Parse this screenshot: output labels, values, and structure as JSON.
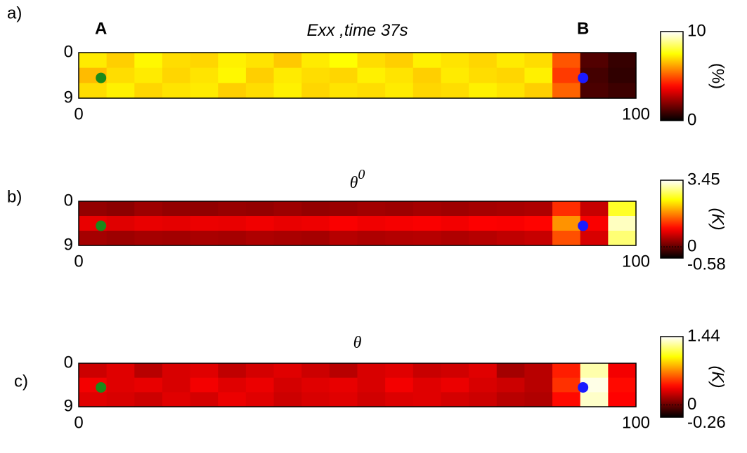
{
  "chart_data": [
    {
      "type": "heatmap",
      "panel_label": "a)",
      "title": "Exx ,time 37s",
      "title_style": "sans-italic",
      "xlim": [
        0,
        100
      ],
      "xticks": [
        0,
        100
      ],
      "ylim": [
        0,
        9
      ],
      "yticks": [
        0,
        9
      ],
      "colormap": "hot",
      "z": [
        [
          7.2,
          6.8,
          7.4,
          7.0,
          6.9,
          7.3,
          7.1,
          6.7,
          7.2,
          7.5,
          7.0,
          6.8,
          7.3,
          7.1,
          6.9,
          7.2,
          7.0,
          5.0,
          1.2,
          0.8
        ],
        [
          6.5,
          7.0,
          7.2,
          6.9,
          7.1,
          7.4,
          6.8,
          7.2,
          7.0,
          6.9,
          7.3,
          7.1,
          6.8,
          7.2,
          7.0,
          6.9,
          7.3,
          4.6,
          1.0,
          0.7
        ],
        [
          7.0,
          7.3,
          6.9,
          7.1,
          7.2,
          6.8,
          7.0,
          7.3,
          6.9,
          7.1,
          7.0,
          7.2,
          6.9,
          7.0,
          7.3,
          7.1,
          6.8,
          5.2,
          1.1,
          0.9
        ]
      ],
      "colorbar": {
        "lim": [
          0,
          10
        ],
        "ticks": [
          0,
          10
        ],
        "label": "(%)",
        "label_style": "sans"
      },
      "points": [
        {
          "name": "A",
          "x": 4,
          "y": 5,
          "color": "#1a8a1a"
        },
        {
          "name": "B",
          "x": 90.5,
          "y": 5,
          "color": "#1a1aff"
        }
      ]
    },
    {
      "type": "heatmap",
      "panel_label": "b)",
      "title": "θ",
      "title_sup": "0",
      "title_style": "serif-italic",
      "xlim": [
        0,
        100
      ],
      "xticks": [
        0,
        100
      ],
      "ylim": [
        0,
        9
      ],
      "yticks": [
        0,
        9
      ],
      "colormap": "hot",
      "z": [
        [
          0.3,
          0.25,
          0.35,
          0.3,
          0.28,
          0.32,
          0.3,
          0.35,
          0.3,
          0.33,
          0.38,
          0.35,
          0.4,
          0.36,
          0.4,
          0.42,
          0.45,
          1.2,
          0.6,
          2.6
        ],
        [
          0.8,
          0.75,
          0.8,
          0.78,
          0.82,
          0.8,
          0.85,
          0.8,
          0.83,
          0.9,
          0.85,
          0.88,
          0.9,
          0.86,
          0.92,
          0.9,
          0.95,
          1.8,
          0.9,
          3.2
        ],
        [
          0.4,
          0.35,
          0.4,
          0.38,
          0.42,
          0.4,
          0.45,
          0.42,
          0.4,
          0.5,
          0.45,
          0.48,
          0.5,
          0.46,
          0.5,
          0.55,
          0.6,
          1.4,
          0.7,
          2.9
        ]
      ],
      "colorbar": {
        "lim": [
          -0.58,
          3.45
        ],
        "ticks": [
          -0.58,
          0,
          3.45
        ],
        "label": "(K)",
        "label_style": "sans-italic"
      },
      "points": [
        {
          "x": 4,
          "y": 5,
          "color": "#1a8a1a"
        },
        {
          "x": 90.5,
          "y": 5,
          "color": "#1a1aff"
        }
      ]
    },
    {
      "type": "heatmap",
      "panel_label": "c)",
      "title": "θ",
      "title_style": "serif-italic",
      "xlim": [
        0,
        100
      ],
      "xticks": [
        0,
        100
      ],
      "ylim": [
        0,
        9
      ],
      "yticks": [
        0,
        9
      ],
      "colormap": "hot",
      "z": [
        [
          0.25,
          0.3,
          0.2,
          0.28,
          0.3,
          0.22,
          0.27,
          0.3,
          0.25,
          0.2,
          0.28,
          0.3,
          0.24,
          0.26,
          0.3,
          0.15,
          0.2,
          0.45,
          1.3,
          0.35
        ],
        [
          0.35,
          0.3,
          0.32,
          0.28,
          0.35,
          0.3,
          0.33,
          0.27,
          0.3,
          0.32,
          0.28,
          0.35,
          0.3,
          0.33,
          0.28,
          0.25,
          0.2,
          0.5,
          1.4,
          0.4
        ],
        [
          0.3,
          0.28,
          0.25,
          0.3,
          0.27,
          0.33,
          0.3,
          0.25,
          0.28,
          0.3,
          0.26,
          0.29,
          0.3,
          0.27,
          0.25,
          0.2,
          0.18,
          0.4,
          1.35,
          0.38
        ]
      ],
      "colorbar": {
        "lim": [
          -0.26,
          1.44
        ],
        "ticks": [
          -0.26,
          0,
          1.44
        ],
        "label": "(K)",
        "label_style": "sans-italic"
      },
      "points": [
        {
          "x": 4,
          "y": 5,
          "color": "#1a8a1a"
        },
        {
          "x": 90.5,
          "y": 5,
          "color": "#1a1aff"
        }
      ]
    }
  ]
}
